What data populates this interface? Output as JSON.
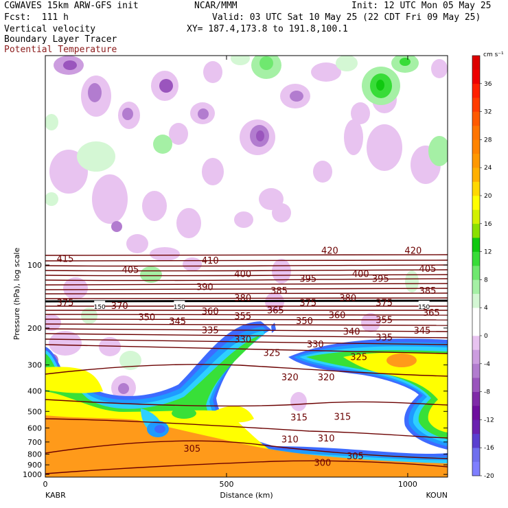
{
  "header": {
    "model": "CGWAVES 15km ARW-GFS init",
    "center": "NCAR/MMM",
    "init": "Init: 12 UTC Mon 05 May 25",
    "fcst": "Fcst:  111 h",
    "valid": "Valid: 03 UTC Sat 10 May 25 (22 CDT Fri 09 May 25)",
    "field1": "Vertical velocity",
    "field2": "Boundary Layer Tracer",
    "field3": "Potential Temperature",
    "xy": "XY= 187.4,173.8 to 191.8,100.1"
  },
  "colors": {
    "theta": "#6b0000",
    "field3_text": "#8b1a1a"
  },
  "chart_data": {
    "type": "heatmap",
    "xlabel": "Distance (km)",
    "ylabel": "Pressure (hPa), log scale",
    "xlim": [
      0,
      1110
    ],
    "ylim": [
      1030,
      10
    ],
    "y_scale": "log",
    "x_ticks": [
      0,
      500,
      1000
    ],
    "x_tick_labels": [
      "0",
      "500",
      "1000"
    ],
    "y_ticks": [
      100,
      200,
      300,
      400,
      500,
      600,
      700,
      800,
      900,
      1000
    ],
    "y_tick_labels": [
      "100",
      "200",
      "300",
      "400",
      "500",
      "600",
      "700",
      "800",
      "900",
      "1000"
    ],
    "endpoint_left": "KABR",
    "endpoint_right": "KOUN",
    "colorbar": {
      "unit": "cm s⁻¹",
      "levels": [
        -20,
        -18,
        -16,
        -14,
        -12,
        -10,
        -8,
        -6,
        -4,
        -2,
        0,
        2,
        4,
        6,
        8,
        10,
        12,
        14,
        16,
        18,
        20,
        22,
        24,
        26,
        28,
        30,
        32,
        34,
        36,
        38,
        40
      ],
      "labels": [
        "-20",
        "-16",
        "-12",
        "-8",
        "-4",
        "0",
        "4",
        "8",
        "12",
        "16",
        "20",
        "24",
        "28",
        "32",
        "36"
      ],
      "label_values": [
        -20,
        -16,
        -12,
        -8,
        -4,
        0,
        4,
        8,
        12,
        16,
        20,
        24,
        28,
        32,
        36
      ],
      "colors": [
        "#7f7fff",
        "#6f6fee",
        "#5a3fd0",
        "#6a22b0",
        "#6e0f9e",
        "#7f2aa8",
        "#9a55bd",
        "#b27ccf",
        "#cc9ddf",
        "#e8c3f0",
        "#ffffff",
        "#ffffff",
        "#d4f7d4",
        "#a5f0a5",
        "#6fe86f",
        "#38dc38",
        "#10c810",
        "#8ae000",
        "#d2f000",
        "#ffff00",
        "#ffd800",
        "#ffb000",
        "#ff9800",
        "#ff8400",
        "#ff7400",
        "#ff5a00",
        "#ff3c00",
        "#ff2000",
        "#ee0000",
        "#dd0000"
      ]
    },
    "tracer_colors": [
      "#3d6bff",
      "#1e9bff",
      "#2ed0ff",
      "#38e038",
      "#ffff00",
      "#ff9a1a"
    ],
    "theta_labels": [
      {
        "text": "415",
        "x": 55,
        "p": 93
      },
      {
        "text": "405",
        "x": 235,
        "p": 105
      },
      {
        "text": "410",
        "x": 455,
        "p": 95
      },
      {
        "text": "420",
        "x": 785,
        "p": 85
      },
      {
        "text": "420",
        "x": 1015,
        "p": 85
      },
      {
        "text": "400",
        "x": 545,
        "p": 110
      },
      {
        "text": "400",
        "x": 870,
        "p": 110
      },
      {
        "text": "405",
        "x": 1055,
        "p": 104
      },
      {
        "text": "395",
        "x": 725,
        "p": 116
      },
      {
        "text": "395",
        "x": 925,
        "p": 116
      },
      {
        "text": "390",
        "x": 440,
        "p": 127
      },
      {
        "text": "385",
        "x": 645,
        "p": 132
      },
      {
        "text": "385",
        "x": 1055,
        "p": 132
      },
      {
        "text": "380",
        "x": 545,
        "p": 143
      },
      {
        "text": "380",
        "x": 835,
        "p": 143
      },
      {
        "text": "375",
        "x": 55,
        "p": 151
      },
      {
        "text": "375",
        "x": 725,
        "p": 151
      },
      {
        "text": "375",
        "x": 935,
        "p": 151
      },
      {
        "text": "370",
        "x": 205,
        "p": 156
      },
      {
        "text": "150",
        "x": 150,
        "p": 156
      },
      {
        "text": "150",
        "x": 370,
        "p": 156
      },
      {
        "text": "150",
        "x": 1045,
        "p": 156
      },
      {
        "text": "360",
        "x": 455,
        "p": 166
      },
      {
        "text": "360",
        "x": 805,
        "p": 173
      },
      {
        "text": "365",
        "x": 635,
        "p": 164
      },
      {
        "text": "365",
        "x": 1065,
        "p": 168
      },
      {
        "text": "355",
        "x": 545,
        "p": 175
      },
      {
        "text": "355",
        "x": 935,
        "p": 182
      },
      {
        "text": "350",
        "x": 280,
        "p": 177
      },
      {
        "text": "350",
        "x": 715,
        "p": 184
      },
      {
        "text": "345",
        "x": 365,
        "p": 185
      },
      {
        "text": "345",
        "x": 1040,
        "p": 205
      },
      {
        "text": "340",
        "x": 845,
        "p": 207
      },
      {
        "text": "335",
        "x": 455,
        "p": 204
      },
      {
        "text": "335",
        "x": 935,
        "p": 221
      },
      {
        "text": "330",
        "x": 545,
        "p": 226
      },
      {
        "text": "330",
        "x": 745,
        "p": 238
      },
      {
        "text": "325",
        "x": 625,
        "p": 262
      },
      {
        "text": "325",
        "x": 865,
        "p": 274
      },
      {
        "text": "320",
        "x": 675,
        "p": 342
      },
      {
        "text": "320",
        "x": 775,
        "p": 342
      },
      {
        "text": "315",
        "x": 700,
        "p": 533
      },
      {
        "text": "315",
        "x": 820,
        "p": 528
      },
      {
        "text": "310",
        "x": 675,
        "p": 677
      },
      {
        "text": "310",
        "x": 775,
        "p": 671
      },
      {
        "text": "305",
        "x": 405,
        "p": 751
      },
      {
        "text": "305",
        "x": 855,
        "p": 815
      },
      {
        "text": "300",
        "x": 765,
        "p": 875
      }
    ]
  }
}
